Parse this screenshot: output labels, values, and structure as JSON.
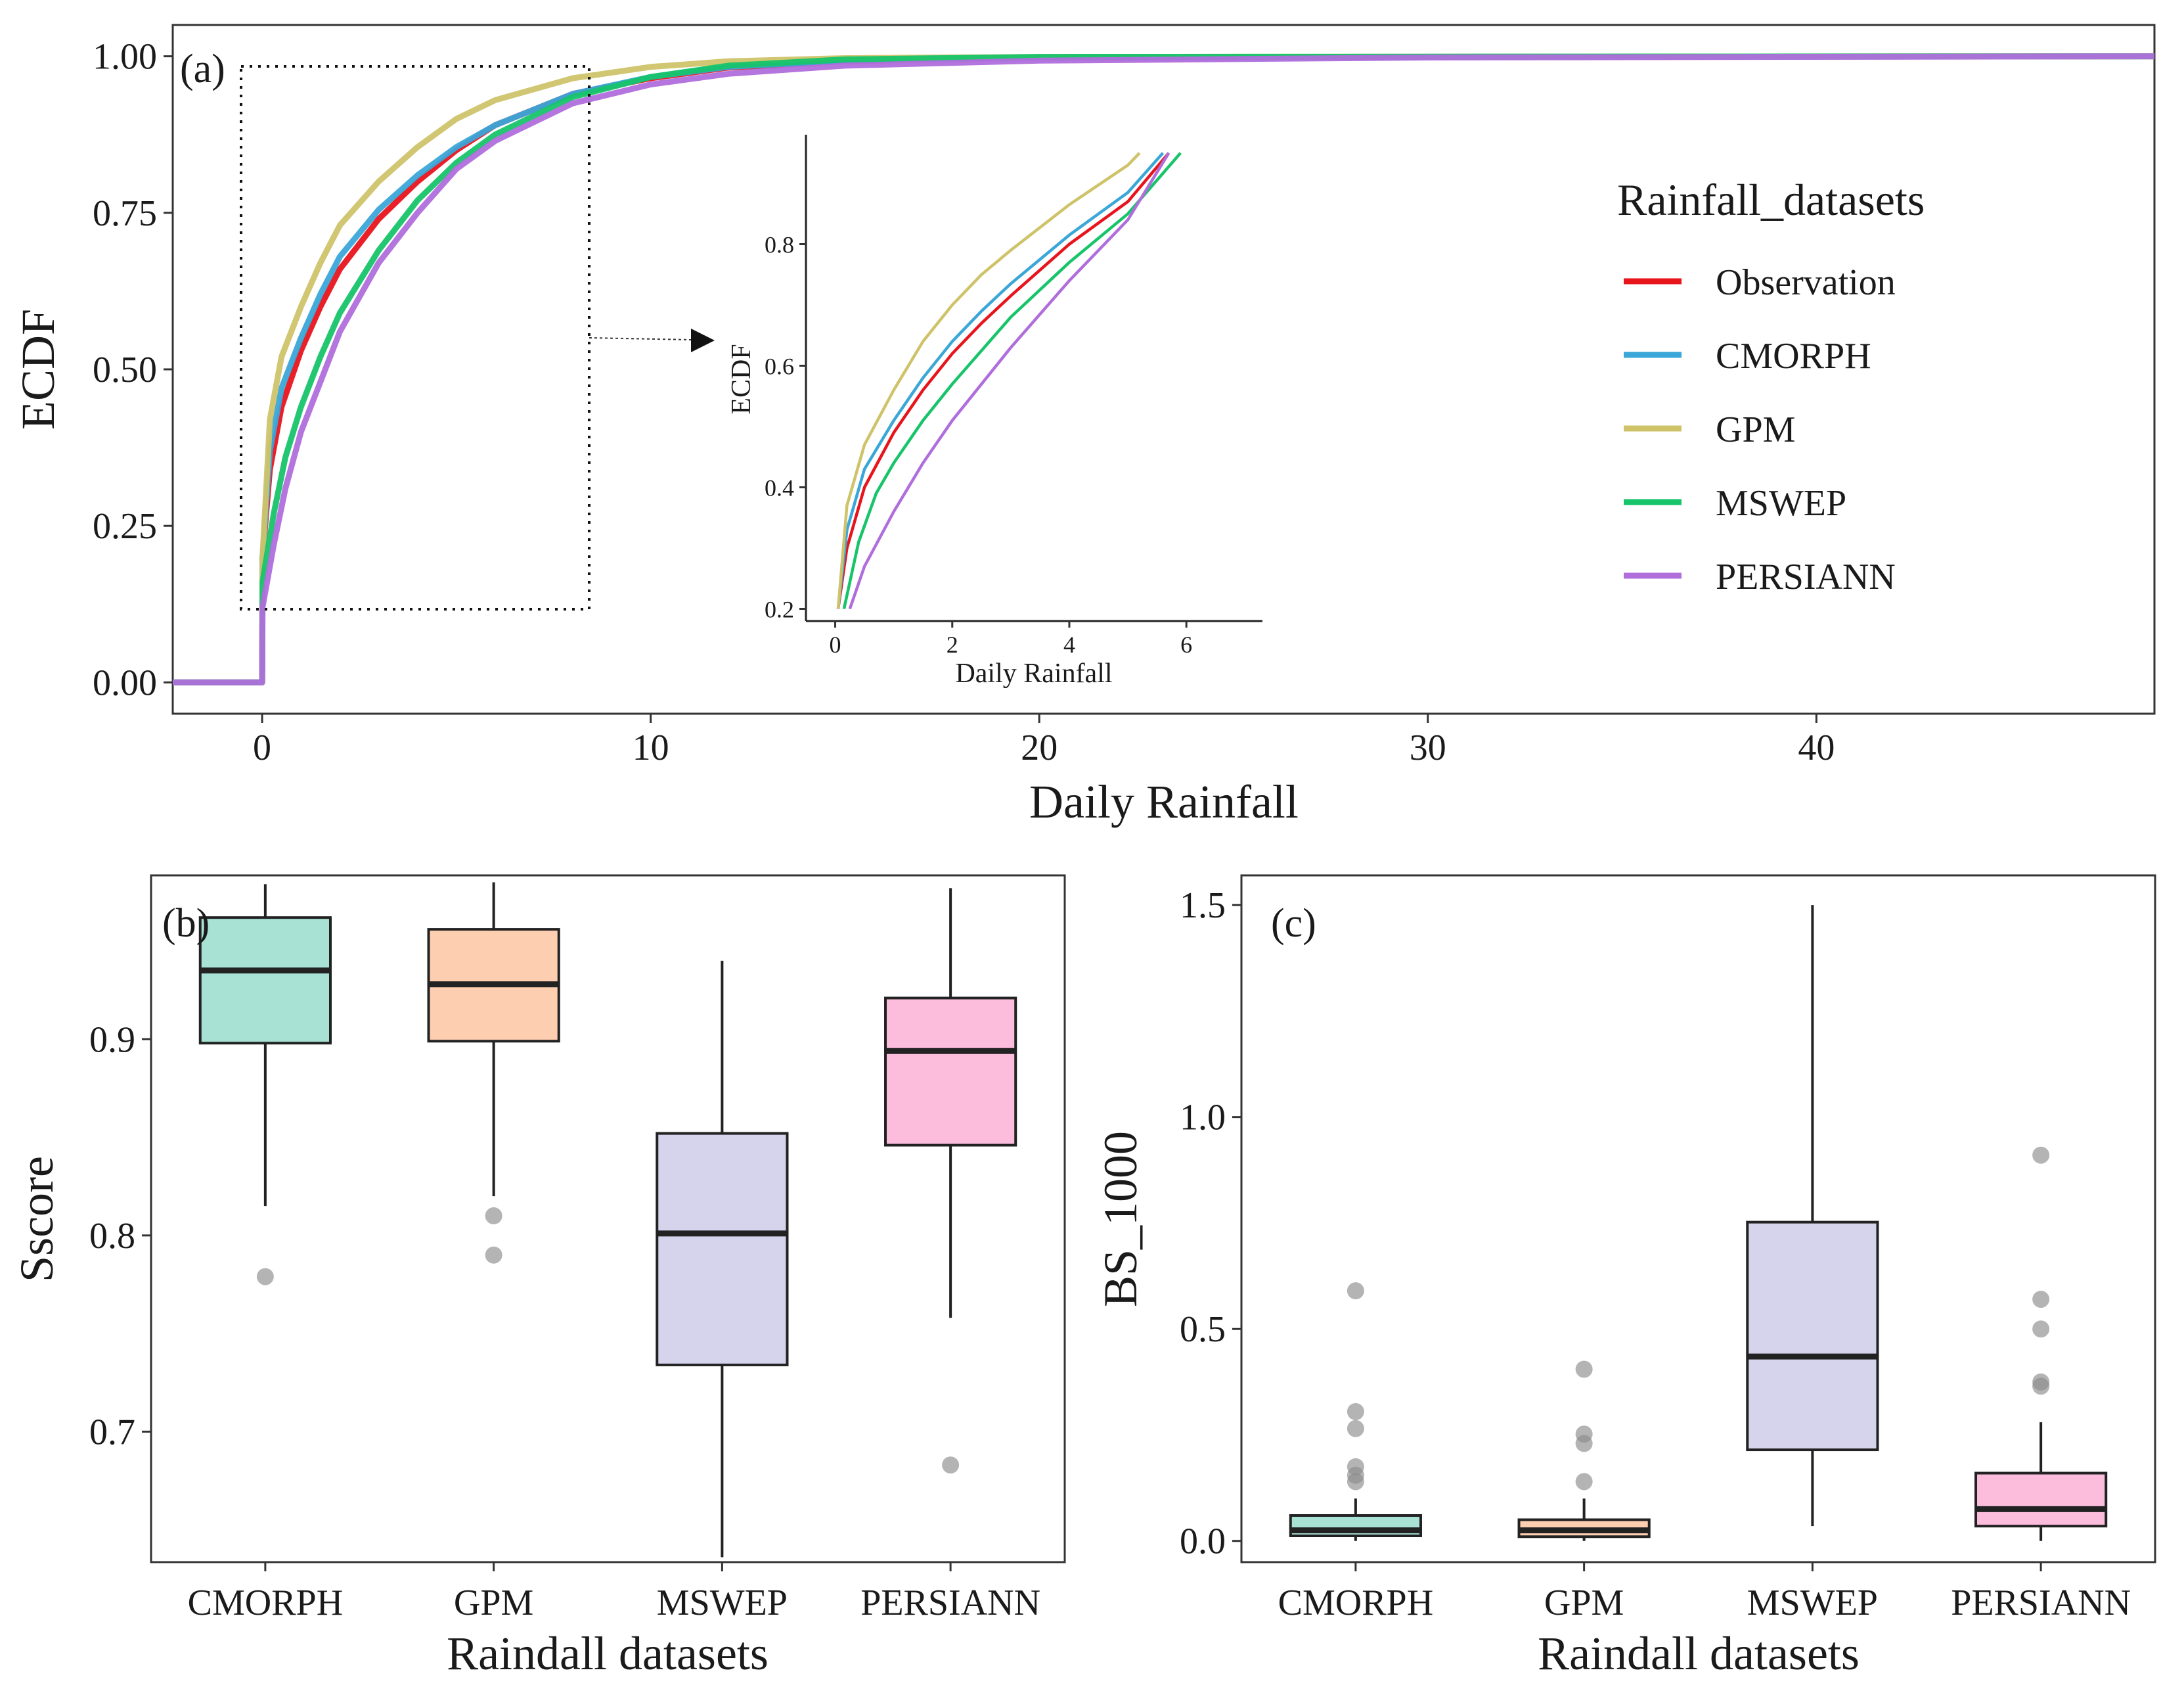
{
  "chart_data": [
    {
      "type": "line",
      "panel_label": "(a)",
      "xlabel": "Daily Rainfall",
      "ylabel": "ECDF",
      "xlim": [
        -2.3,
        48.7
      ],
      "ylim": [
        -0.05,
        1.05
      ],
      "xticks": [
        0,
        10,
        20,
        30,
        40
      ],
      "xtick_labels": [
        "0",
        "10",
        "20",
        "30",
        "40"
      ],
      "yticks": [
        0,
        0.25,
        0.5,
        0.75,
        1.0
      ],
      "ytick_labels": [
        "0.00",
        "0.25",
        "0.50",
        "0.75",
        "1.00"
      ],
      "legend": {
        "title": "Rainfall_datasets",
        "placement": "right",
        "entries": [
          "Observation",
          "CMORPH",
          "GPM",
          "MSWEP",
          "PERSIANN"
        ]
      },
      "colors": {
        "Observation": "#e8141c",
        "CMORPH": "#3aa7d8",
        "GPM": "#cfc36a",
        "MSWEP": "#17c46a",
        "PERSIANN": "#b06edc"
      },
      "series": [
        {
          "name": "Observation",
          "x": [
            -2.3,
            0,
            0.01,
            0.2,
            0.5,
            1,
            1.5,
            2,
            3,
            4,
            5,
            6,
            8,
            10,
            12,
            15,
            20,
            48.7
          ],
          "y": [
            0,
            0,
            0.2,
            0.34,
            0.44,
            0.53,
            0.6,
            0.66,
            0.74,
            0.8,
            0.85,
            0.89,
            0.94,
            0.965,
            0.982,
            0.992,
            0.998,
            1.0
          ]
        },
        {
          "name": "CMORPH",
          "x": [
            -2.3,
            0,
            0.01,
            0.2,
            0.5,
            1,
            1.5,
            2,
            3,
            4,
            5,
            6,
            8,
            10,
            12,
            15,
            20,
            48.7
          ],
          "y": [
            0,
            0,
            0.2,
            0.37,
            0.47,
            0.55,
            0.62,
            0.68,
            0.755,
            0.81,
            0.855,
            0.89,
            0.94,
            0.967,
            0.983,
            0.993,
            0.998,
            1.0
          ]
        },
        {
          "name": "GPM",
          "x": [
            -2.3,
            0,
            0.01,
            0.2,
            0.5,
            1,
            1.5,
            2,
            3,
            4,
            5,
            6,
            8,
            10,
            12,
            15,
            20,
            48.7
          ],
          "y": [
            0,
            0,
            0.2,
            0.42,
            0.52,
            0.6,
            0.67,
            0.73,
            0.8,
            0.855,
            0.9,
            0.93,
            0.965,
            0.983,
            0.992,
            0.997,
            0.999,
            1.0
          ]
        },
        {
          "name": "MSWEP",
          "x": [
            -2.3,
            0,
            0.01,
            0.3,
            0.6,
            1,
            1.5,
            2,
            3,
            4,
            5,
            6,
            8,
            10,
            12,
            15,
            20,
            48.7
          ],
          "y": [
            0,
            0,
            0.16,
            0.27,
            0.36,
            0.44,
            0.52,
            0.59,
            0.69,
            0.77,
            0.83,
            0.875,
            0.935,
            0.967,
            0.985,
            0.995,
            0.999,
            1.0
          ]
        },
        {
          "name": "PERSIANN",
          "x": [
            -2.3,
            0,
            0.01,
            0.3,
            0.6,
            1,
            1.5,
            2,
            3,
            4,
            5,
            6,
            8,
            10,
            12,
            15,
            20,
            30,
            48.7
          ],
          "y": [
            0,
            0,
            0.12,
            0.22,
            0.31,
            0.4,
            0.48,
            0.56,
            0.67,
            0.75,
            0.82,
            0.865,
            0.925,
            0.955,
            0.972,
            0.985,
            0.993,
            0.998,
            1.0
          ]
        }
      ],
      "zoom_box": {
        "xlim": [
          -0.5,
          8.4
        ],
        "ylim": [
          0.12,
          0.98
        ]
      },
      "inset": {
        "xlabel": "Daily Rainfall",
        "ylabel": "ECDF",
        "xlim": [
          -0.5,
          7.3
        ],
        "ylim": [
          0.18,
          0.98
        ],
        "xticks": [
          0,
          2,
          4,
          6
        ],
        "xtick_labels": [
          "0",
          "2",
          "4",
          "6"
        ],
        "yticks": [
          0.2,
          0.4,
          0.6,
          0.8
        ],
        "ytick_labels": [
          "0.2",
          "0.4",
          "0.6",
          "0.8"
        ],
        "series": [
          {
            "name": "Observation",
            "x": [
              0.05,
              0.2,
              0.5,
              1,
              1.5,
              2,
              2.5,
              3,
              4,
              5,
              5.7
            ],
            "y": [
              0.2,
              0.3,
              0.4,
              0.49,
              0.56,
              0.62,
              0.67,
              0.715,
              0.8,
              0.87,
              0.95
            ]
          },
          {
            "name": "CMORPH",
            "x": [
              0.05,
              0.2,
              0.5,
              1,
              1.5,
              2,
              2.5,
              3,
              4,
              5,
              5.6
            ],
            "y": [
              0.2,
              0.33,
              0.43,
              0.51,
              0.58,
              0.64,
              0.69,
              0.735,
              0.815,
              0.885,
              0.95
            ]
          },
          {
            "name": "GPM",
            "x": [
              0.05,
              0.2,
              0.5,
              1,
              1.5,
              2,
              2.5,
              3,
              4,
              5,
              5.2
            ],
            "y": [
              0.2,
              0.37,
              0.47,
              0.56,
              0.64,
              0.7,
              0.75,
              0.79,
              0.865,
              0.93,
              0.95
            ]
          },
          {
            "name": "MSWEP",
            "x": [
              0.15,
              0.4,
              0.7,
              1,
              1.5,
              2,
              3,
              4,
              5,
              5.9
            ],
            "y": [
              0.2,
              0.31,
              0.39,
              0.44,
              0.51,
              0.57,
              0.68,
              0.77,
              0.85,
              0.95
            ]
          },
          {
            "name": "PERSIANN",
            "x": [
              0.25,
              0.5,
              1,
              1.5,
              2,
              3,
              4,
              5,
              5.7
            ],
            "y": [
              0.2,
              0.27,
              0.36,
              0.44,
              0.51,
              0.63,
              0.74,
              0.84,
              0.95
            ]
          }
        ]
      }
    },
    {
      "type": "box",
      "panel_label": "(b)",
      "xlabel": "Raindall datasets",
      "ylabel": "Sscore",
      "ylim": [
        0.6335,
        0.9835
      ],
      "yticks": [
        0.7,
        0.8,
        0.9
      ],
      "ytick_labels": [
        "0.7",
        "0.8",
        "0.9"
      ],
      "categories": [
        "CMORPH",
        "GPM",
        "MSWEP",
        "PERSIANN"
      ],
      "fill_colors": [
        "#a8e2d5",
        "#fdceb0",
        "#d5d4ec",
        "#fcbcdc"
      ],
      "boxes": [
        {
          "lower_whisker": 0.815,
          "q1": 0.898,
          "median": 0.935,
          "q3": 0.962,
          "upper_whisker": 0.979,
          "outliers": [
            0.779
          ]
        },
        {
          "lower_whisker": 0.82,
          "q1": 0.899,
          "median": 0.928,
          "q3": 0.956,
          "upper_whisker": 0.98,
          "outliers": [
            0.81,
            0.79
          ]
        },
        {
          "lower_whisker": 0.636,
          "q1": 0.734,
          "median": 0.801,
          "q3": 0.852,
          "upper_whisker": 0.94,
          "outliers": []
        },
        {
          "lower_whisker": 0.758,
          "q1": 0.846,
          "median": 0.894,
          "q3": 0.921,
          "upper_whisker": 0.977,
          "outliers": [
            0.683
          ]
        }
      ]
    },
    {
      "type": "box",
      "panel_label": "(c)",
      "xlabel": "Raindall datasets",
      "ylabel": "BS_1000",
      "ylim": [
        -0.05,
        1.57
      ],
      "yticks": [
        0.0,
        0.5,
        1.0,
        1.5
      ],
      "ytick_labels": [
        "0.0",
        "0.5",
        "1.0",
        "1.5"
      ],
      "categories": [
        "CMORPH",
        "GPM",
        "MSWEP",
        "PERSIANN"
      ],
      "fill_colors": [
        "#a8e2d5",
        "#fdceb0",
        "#d5d4ec",
        "#fcbcdc"
      ],
      "boxes": [
        {
          "lower_whisker": 0.0,
          "q1": 0.012,
          "median": 0.025,
          "q3": 0.06,
          "upper_whisker": 0.1,
          "outliers": [
            0.59,
            0.305,
            0.265,
            0.175,
            0.155,
            0.14
          ]
        },
        {
          "lower_whisker": 0.0,
          "q1": 0.01,
          "median": 0.025,
          "q3": 0.05,
          "upper_whisker": 0.1,
          "outliers": [
            0.405,
            0.252,
            0.23,
            0.14
          ]
        },
        {
          "lower_whisker": 0.035,
          "q1": 0.215,
          "median": 0.435,
          "q3": 0.752,
          "upper_whisker": 1.5,
          "outliers": []
        },
        {
          "lower_whisker": 0.0,
          "q1": 0.035,
          "median": 0.075,
          "q3": 0.16,
          "upper_whisker": 0.28,
          "outliers": [
            0.91,
            0.57,
            0.5,
            0.375,
            0.365
          ]
        }
      ]
    }
  ]
}
